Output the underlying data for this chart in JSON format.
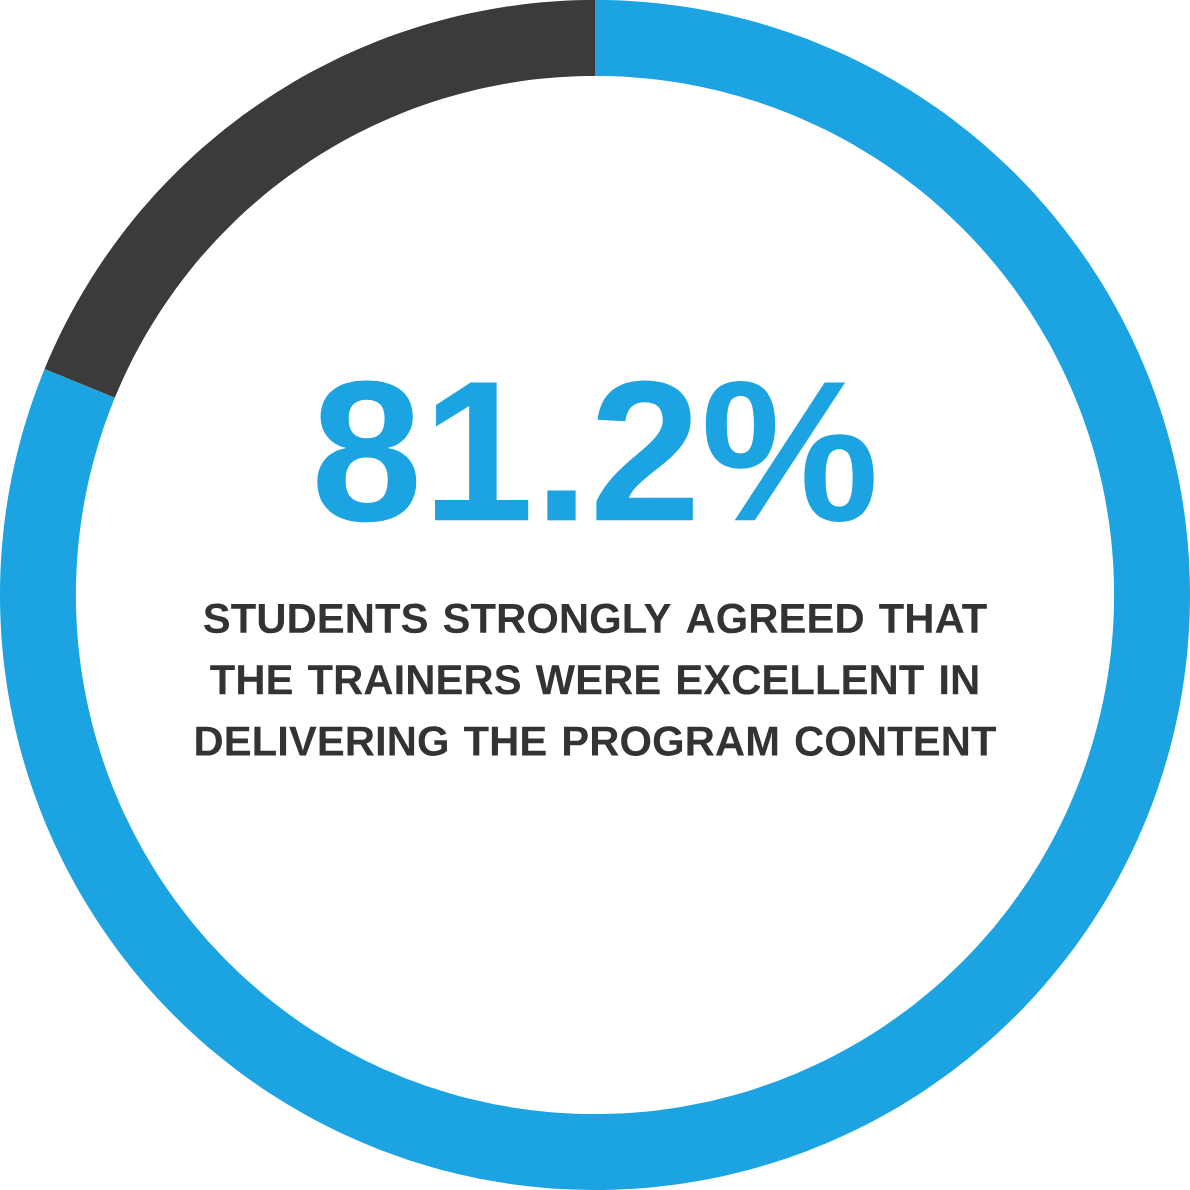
{
  "chart_data": {
    "type": "donut",
    "categories": [
      null,
      null
    ],
    "values": [
      81.2,
      18.8
    ],
    "colors": [
      "#1ba3e2",
      "#3b3b3c"
    ],
    "value_labels": [
      "81.2%",
      null
    ],
    "annotations": [
      "STUDENTS STRONGLY AGREED THAT THE TRAINERS WERE EXCELLENT IN DELIVERING THE PROGRAM CONTENT"
    ]
  }
}
